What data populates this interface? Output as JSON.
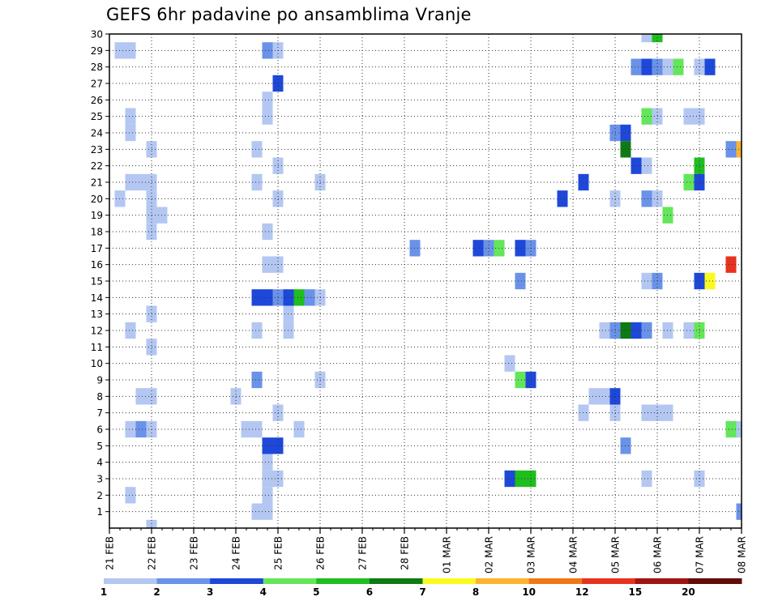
{
  "chart_data": {
    "type": "heatmap",
    "title": "GEFS 6hr padavine po ansamblima Vranje",
    "x_tick_labels": [
      "21 FEB",
      "22 FEB",
      "23 FEB",
      "24 FEB",
      "25 FEB",
      "26 FEB",
      "27 FEB",
      "28 FEB",
      "01 MAR",
      "02 MAR",
      "03 MAR",
      "04 MAR",
      "05 MAR",
      "06 MAR",
      "07 MAR",
      "08 MAR"
    ],
    "y_tick_labels": [
      "1",
      "2",
      "3",
      "4",
      "5",
      "6",
      "7",
      "8",
      "9",
      "10",
      "11",
      "12",
      "13",
      "14",
      "15",
      "16",
      "17",
      "18",
      "19",
      "20",
      "21",
      "22",
      "23",
      "24",
      "25",
      "26",
      "27",
      "28",
      "29",
      "30"
    ],
    "xlim_days": [
      0,
      15
    ],
    "ylim": [
      0,
      30
    ],
    "x_step_days": 0.25,
    "grid": "dotted",
    "colorbar": {
      "labels": [
        "1",
        "2",
        "3",
        "4",
        "5",
        "6",
        "7",
        "8",
        "10",
        "12",
        "15",
        "20"
      ],
      "colors": [
        "#b3c7f2",
        "#6a92e8",
        "#1e48d9",
        "#64e65a",
        "#1ebe1e",
        "#0f7a14",
        "#fafa1e",
        "#fab432",
        "#f07814",
        "#e6321e",
        "#a01414",
        "#640a0a"
      ]
    },
    "points": [
      [
        0.25,
        29,
        1
      ],
      [
        0.5,
        29,
        1
      ],
      [
        3.75,
        29,
        2
      ],
      [
        4,
        29,
        1
      ],
      [
        12.75,
        30,
        1
      ],
      [
        13,
        30,
        5
      ],
      [
        12.5,
        28,
        2
      ],
      [
        12.75,
        28,
        3
      ],
      [
        13,
        28,
        2
      ],
      [
        13.25,
        28,
        1
      ],
      [
        13.5,
        28,
        4
      ],
      [
        14,
        28,
        1
      ],
      [
        14.25,
        28,
        3
      ],
      [
        4,
        27,
        3
      ],
      [
        3.75,
        26,
        1
      ],
      [
        0.5,
        25,
        1
      ],
      [
        3.75,
        25,
        1
      ],
      [
        12.75,
        25,
        4
      ],
      [
        13,
        25,
        1
      ],
      [
        13.75,
        25,
        1
      ],
      [
        14,
        25,
        1
      ],
      [
        0.5,
        24,
        1
      ],
      [
        12,
        24,
        2
      ],
      [
        12.25,
        24,
        3
      ],
      [
        1,
        23,
        1
      ],
      [
        3.5,
        23,
        1
      ],
      [
        12.25,
        23,
        6
      ],
      [
        14.75,
        23,
        2
      ],
      [
        15,
        23,
        8
      ],
      [
        4,
        22,
        1
      ],
      [
        12.5,
        22,
        3
      ],
      [
        12.75,
        22,
        1
      ],
      [
        14,
        22,
        5
      ],
      [
        0.5,
        21,
        1
      ],
      [
        0.75,
        21,
        1
      ],
      [
        1,
        21,
        1
      ],
      [
        3.5,
        21,
        1
      ],
      [
        5,
        21,
        1
      ],
      [
        11.25,
        21,
        3
      ],
      [
        13.75,
        21,
        4
      ],
      [
        14,
        21,
        3
      ],
      [
        0.25,
        20,
        1
      ],
      [
        1,
        20,
        1
      ],
      [
        4,
        20,
        1
      ],
      [
        10.75,
        20,
        3
      ],
      [
        12,
        20,
        1
      ],
      [
        12.75,
        20,
        2
      ],
      [
        13,
        20,
        1
      ],
      [
        1,
        19,
        1
      ],
      [
        1.25,
        19,
        1
      ],
      [
        13.25,
        19,
        4
      ],
      [
        1,
        18,
        1
      ],
      [
        3.75,
        18,
        1
      ],
      [
        7.25,
        17,
        2
      ],
      [
        8.75,
        17,
        3
      ],
      [
        9,
        17,
        2
      ],
      [
        9.25,
        17,
        4
      ],
      [
        9.75,
        17,
        3
      ],
      [
        10,
        17,
        2
      ],
      [
        3.75,
        16,
        1
      ],
      [
        4,
        16,
        1
      ],
      [
        14.75,
        16,
        10
      ],
      [
        9.75,
        15,
        2
      ],
      [
        12.75,
        15,
        1
      ],
      [
        13,
        15,
        2
      ],
      [
        14,
        15,
        3
      ],
      [
        14.25,
        15,
        7
      ],
      [
        3.5,
        14,
        3
      ],
      [
        3.75,
        14,
        3
      ],
      [
        4,
        14,
        2
      ],
      [
        4.25,
        14,
        3
      ],
      [
        4.5,
        14,
        5
      ],
      [
        4.75,
        14,
        2
      ],
      [
        5,
        14,
        1
      ],
      [
        1,
        13,
        1
      ],
      [
        4.25,
        13,
        1
      ],
      [
        0.5,
        12,
        1
      ],
      [
        3.5,
        12,
        1
      ],
      [
        4.25,
        12,
        1
      ],
      [
        11.75,
        12,
        1
      ],
      [
        12,
        12,
        2
      ],
      [
        12.25,
        12,
        6
      ],
      [
        12.5,
        12,
        3
      ],
      [
        12.75,
        12,
        2
      ],
      [
        13.25,
        12,
        1
      ],
      [
        13.75,
        12,
        1
      ],
      [
        14,
        12,
        4
      ],
      [
        1,
        11,
        1
      ],
      [
        9.5,
        10,
        1
      ],
      [
        3.5,
        9,
        2
      ],
      [
        5,
        9,
        1
      ],
      [
        9.75,
        9,
        4
      ],
      [
        10,
        9,
        3
      ],
      [
        0.75,
        8,
        1
      ],
      [
        1,
        8,
        1
      ],
      [
        3,
        8,
        1
      ],
      [
        11.5,
        8,
        1
      ],
      [
        11.75,
        8,
        1
      ],
      [
        12,
        8,
        3
      ],
      [
        4,
        7,
        1
      ],
      [
        11.25,
        7,
        1
      ],
      [
        12,
        7,
        1
      ],
      [
        12.75,
        7,
        1
      ],
      [
        13,
        7,
        1
      ],
      [
        13.25,
        7,
        1
      ],
      [
        0.5,
        6,
        1
      ],
      [
        0.75,
        6,
        2
      ],
      [
        1,
        6,
        1
      ],
      [
        3.25,
        6,
        1
      ],
      [
        3.5,
        6,
        1
      ],
      [
        4.5,
        6,
        1
      ],
      [
        14.75,
        6,
        4
      ],
      [
        15,
        6,
        1
      ],
      [
        3.75,
        5,
        3
      ],
      [
        4,
        5,
        3
      ],
      [
        12.25,
        5,
        2
      ],
      [
        3.75,
        4,
        1
      ],
      [
        3.75,
        3,
        1
      ],
      [
        4,
        3,
        1
      ],
      [
        9.5,
        3,
        3
      ],
      [
        9.75,
        3,
        5
      ],
      [
        10,
        3,
        5
      ],
      [
        12.75,
        3,
        1
      ],
      [
        14,
        3,
        1
      ],
      [
        0.5,
        2,
        1
      ],
      [
        3.75,
        2,
        1
      ],
      [
        3.5,
        1,
        1
      ],
      [
        3.75,
        1,
        1
      ],
      [
        15,
        1,
        2
      ],
      [
        1,
        0,
        1
      ]
    ]
  }
}
